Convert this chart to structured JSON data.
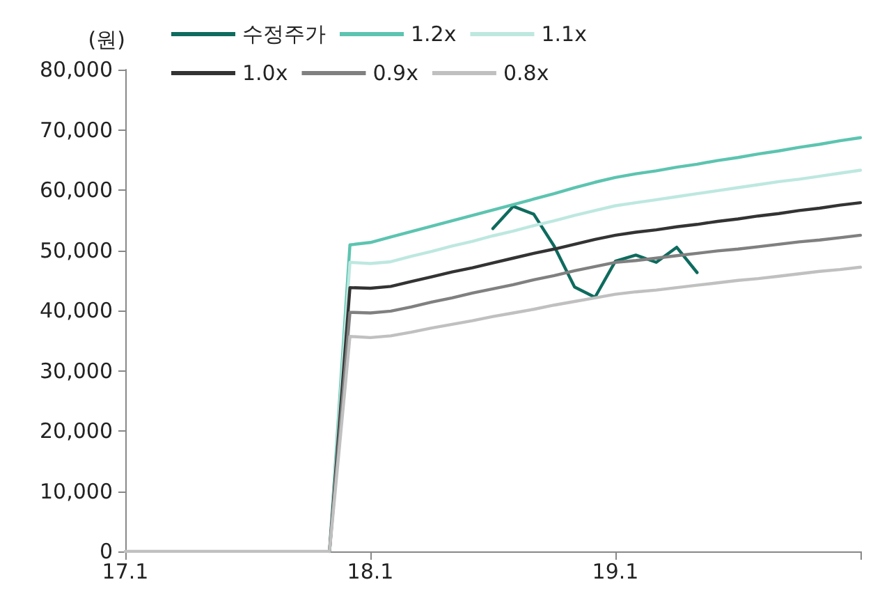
{
  "chart_data": {
    "type": "line",
    "ylabel": "(원)",
    "categories": [
      "17.1",
      null,
      null,
      null,
      null,
      null,
      null,
      null,
      null,
      null,
      null,
      null,
      "18.1",
      null,
      null,
      null,
      null,
      null,
      null,
      null,
      null,
      null,
      null,
      null,
      "19.1",
      null,
      null,
      null,
      null,
      null,
      null,
      null,
      null,
      null,
      null,
      null,
      null
    ],
    "ylim": [
      0,
      80000
    ],
    "yticks": [
      0,
      {
        "value": 10000,
        "label": "10,000"
      },
      {
        "value": 20000,
        "label": "20,000"
      },
      {
        "value": 30000,
        "label": "30,000"
      },
      {
        "value": 40000,
        "label": "40,000"
      },
      {
        "value": 50000,
        "label": "50,000"
      },
      {
        "value": 60000,
        "label": "60,000"
      },
      {
        "value": 70000,
        "label": "70,000"
      },
      {
        "value": 80000,
        "label": "80,000"
      }
    ],
    "grid": false,
    "legend": "top",
    "marker": "none",
    "line_style": "solid",
    "series": [
      {
        "name": "수정주가",
        "color": "#0e6b5e",
        "values": [
          null,
          null,
          null,
          null,
          null,
          null,
          null,
          null,
          null,
          null,
          null,
          null,
          null,
          null,
          null,
          null,
          null,
          null,
          53600,
          57300,
          56000,
          50700,
          43900,
          42200,
          48200,
          49200,
          48000,
          50500,
          46300,
          null,
          null,
          null,
          null,
          null,
          null,
          null,
          null
        ]
      },
      {
        "name": "1.2x",
        "color": "#5cc4b0",
        "values": [
          null,
          null,
          null,
          null,
          null,
          null,
          null,
          null,
          null,
          null,
          0,
          50900,
          51300,
          52200,
          53100,
          54000,
          54900,
          55800,
          56700,
          57600,
          58500,
          59400,
          60400,
          61300,
          62100,
          62700,
          63200,
          63800,
          64300,
          64900,
          65400,
          66000,
          66500,
          67100,
          67600,
          68200,
          68700
        ]
      },
      {
        "name": "1.1x",
        "color": "#bde8e0",
        "values": [
          null,
          null,
          null,
          null,
          null,
          null,
          null,
          null,
          null,
          null,
          0,
          48000,
          47800,
          48100,
          49000,
          49800,
          50700,
          51500,
          52400,
          53200,
          54100,
          54900,
          55800,
          56600,
          57400,
          57900,
          58400,
          58900,
          59400,
          59900,
          60400,
          60900,
          61400,
          61800,
          62300,
          62800,
          63300
        ]
      },
      {
        "name": "1.0x",
        "color": "#333333",
        "values": [
          null,
          null,
          null,
          null,
          null,
          null,
          null,
          null,
          null,
          null,
          0,
          43800,
          43700,
          44000,
          44800,
          45600,
          46400,
          47100,
          47900,
          48700,
          49500,
          50200,
          51000,
          51800,
          52500,
          53000,
          53400,
          53900,
          54300,
          54800,
          55200,
          55700,
          56100,
          56600,
          57000,
          57500,
          57900
        ]
      },
      {
        "name": "0.9x",
        "color": "#808080",
        "values": [
          null,
          null,
          null,
          null,
          null,
          null,
          null,
          null,
          null,
          null,
          0,
          39700,
          39600,
          39900,
          40600,
          41400,
          42100,
          42900,
          43600,
          44300,
          45100,
          45800,
          46600,
          47300,
          48000,
          48300,
          48700,
          49100,
          49500,
          49900,
          50200,
          50600,
          51000,
          51400,
          51700,
          52100,
          52500
        ]
      },
      {
        "name": "0.8x",
        "color": "#c0c0c0",
        "values": [
          0,
          0,
          0,
          0,
          0,
          0,
          0,
          0,
          0,
          0,
          0,
          35700,
          35500,
          35800,
          36400,
          37100,
          37700,
          38300,
          39000,
          39600,
          40200,
          40900,
          41500,
          42100,
          42700,
          43100,
          43400,
          43800,
          44200,
          44600,
          45000,
          45300,
          45700,
          46100,
          46500,
          46800,
          47200
        ]
      }
    ]
  }
}
